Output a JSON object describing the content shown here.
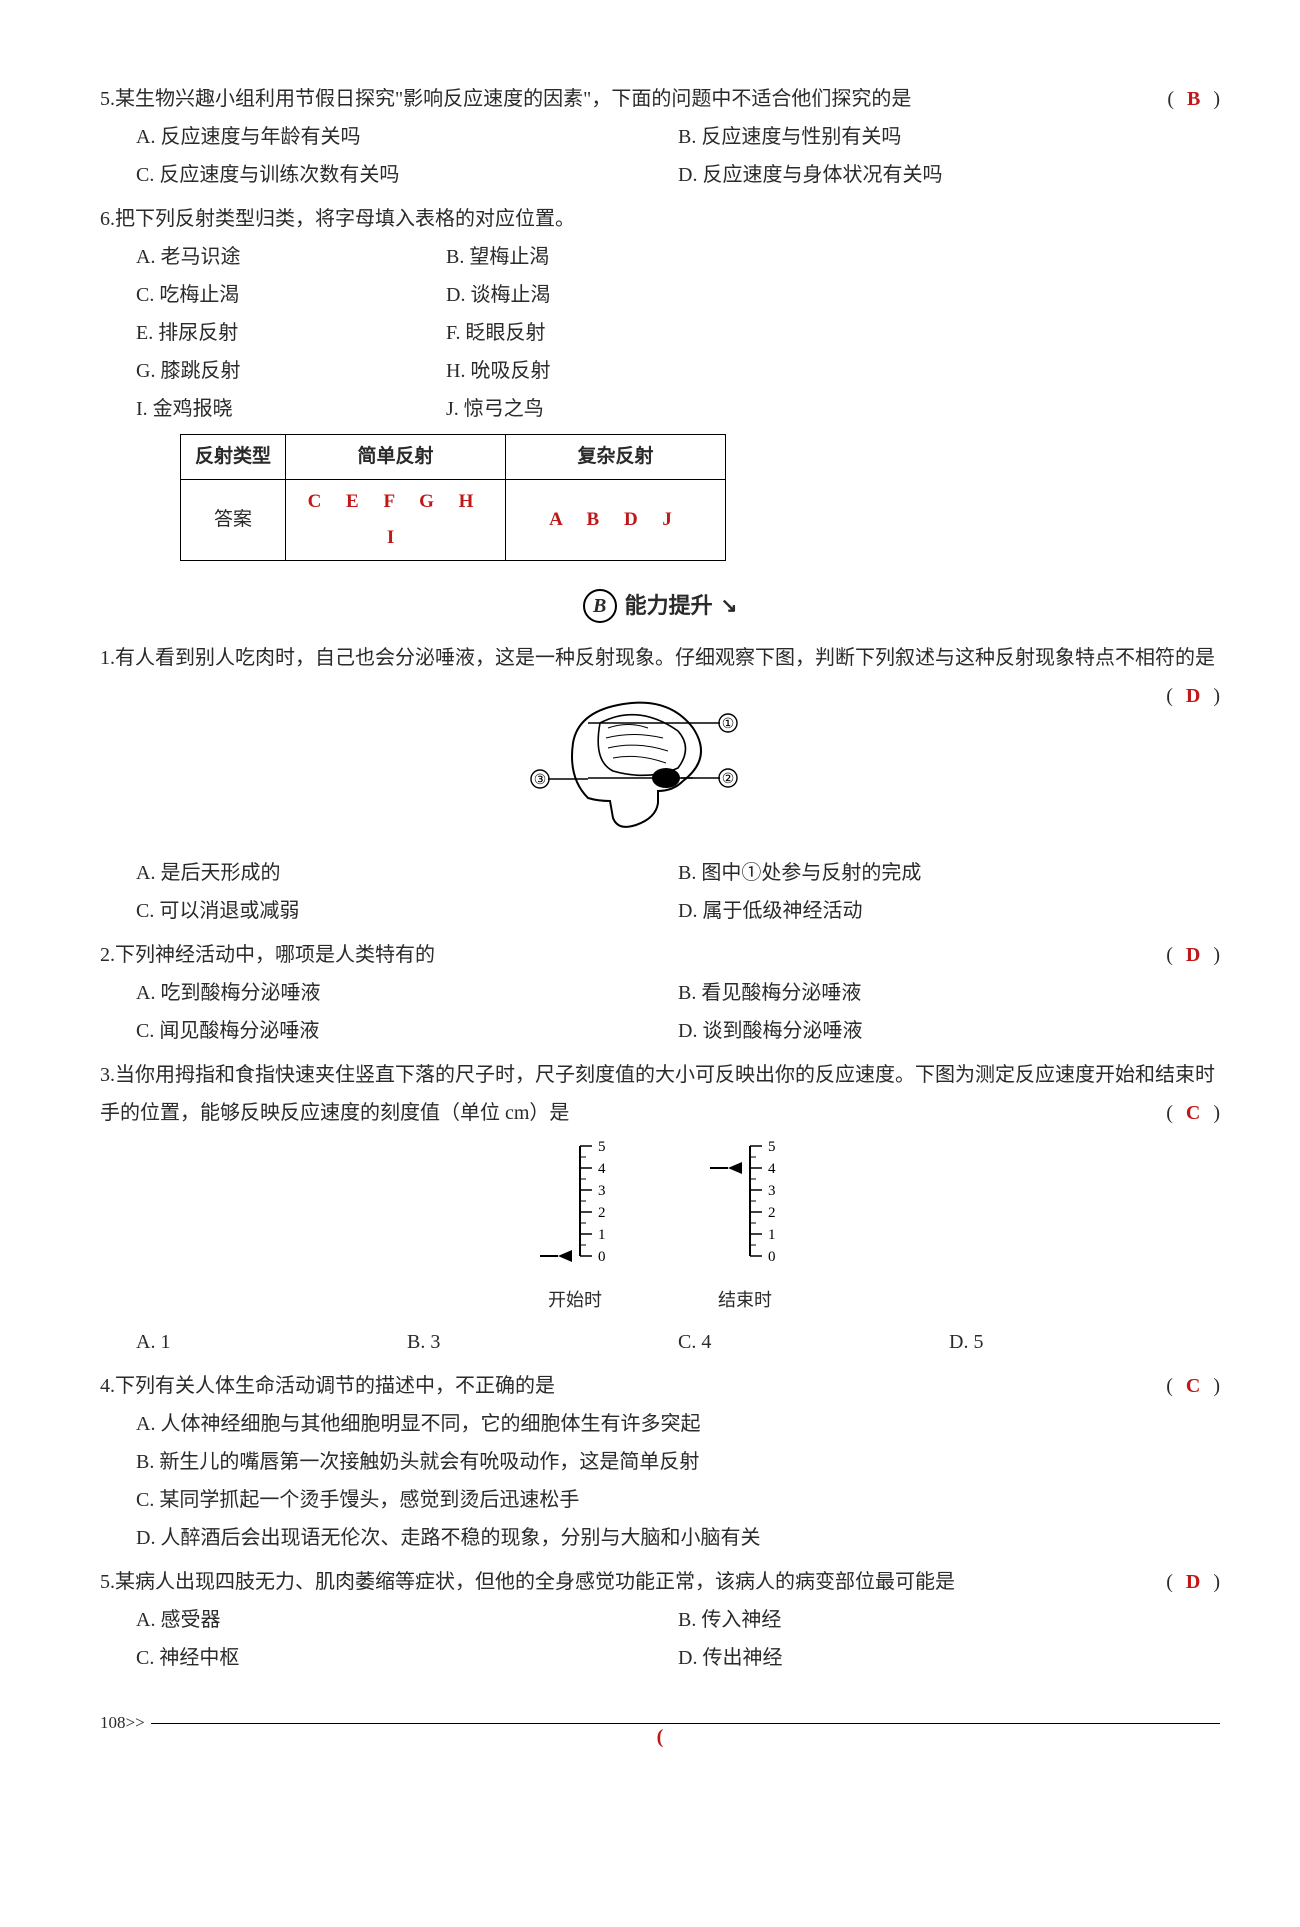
{
  "q5": {
    "num": "5.",
    "text": "某生物兴趣小组利用节假日探究\"影响反应速度的因素\"，下面的问题中不适合他们探究的是",
    "bracket_l": "(",
    "bracket_r": ")",
    "answer": "B",
    "opts": {
      "A": "A. 反应速度与年龄有关吗",
      "B": "B. 反应速度与性别有关吗",
      "C": "C. 反应速度与训练次数有关吗",
      "D": "D. 反应速度与身体状况有关吗"
    }
  },
  "q6": {
    "num": "6.",
    "text": "把下列反射类型归类，将字母填入表格的对应位置。",
    "opts": {
      "A": "A. 老马识途",
      "B": "B. 望梅止渴",
      "C": "C. 吃梅止渴",
      "D": "D. 谈梅止渴",
      "E": "E. 排尿反射",
      "F": "F. 眨眼反射",
      "G": "G. 膝跳反射",
      "H": "H. 吮吸反射",
      "I": "I. 金鸡报晓",
      "J": "J. 惊弓之鸟"
    },
    "table": {
      "h1": "反射类型",
      "h2": "简单反射",
      "h3": "复杂反射",
      "r1": "答案",
      "ans1": "C E F G H I",
      "ans2": "A B D J"
    }
  },
  "section": {
    "badge": "B",
    "title": "能力提升",
    "arrow": "↘"
  },
  "b1": {
    "num": "1.",
    "text": "有人看到别人吃肉时，自己也会分泌唾液，这是一种反射现象。仔细观察下图，判断下列叙述与这种反射现象特点不相符的是",
    "bracket_l": "(",
    "bracket_r": ")",
    "answer": "D",
    "fig": {
      "labels": [
        "①",
        "②",
        "③"
      ]
    },
    "opts": {
      "A": "A. 是后天形成的",
      "B": "B. 图中①处参与反射的完成",
      "C": "C. 可以消退或减弱",
      "D": "D. 属于低级神经活动"
    }
  },
  "b2": {
    "num": "2.",
    "text": "下列神经活动中，哪项是人类特有的",
    "bracket_l": "(",
    "bracket_r": ")",
    "answer": "D",
    "opts": {
      "A": "A. 吃到酸梅分泌唾液",
      "B": "B. 看见酸梅分泌唾液",
      "C": "C. 闻见酸梅分泌唾液",
      "D": "D. 谈到酸梅分泌唾液"
    }
  },
  "b3": {
    "num": "3.",
    "text": "当你用拇指和食指快速夹住竖直下落的尺子时，尺子刻度值的大小可反映出你的反应速度。下图为测定反应速度开始和结束时手的位置，能够反映反应速度的刻度值（单位 cm）是",
    "bracket_l": "(",
    "bracket_r": ")",
    "answer": "C",
    "ruler": {
      "ticks": [
        "5",
        "4",
        "3",
        "2",
        "1",
        "0"
      ],
      "left_label": "开始时",
      "right_label": "结束时",
      "left_pointer": 0,
      "right_pointer": 4
    },
    "opts": {
      "A": "A. 1",
      "B": "B. 3",
      "C": "C. 4",
      "D": "D. 5"
    }
  },
  "b4": {
    "num": "4.",
    "text": "下列有关人体生命活动调节的描述中，不正确的是",
    "bracket_l": "(",
    "bracket_r": ")",
    "answer": "C",
    "opts": {
      "A": "A. 人体神经细胞与其他细胞明显不同，它的细胞体生有许多突起",
      "B": "B. 新生儿的嘴唇第一次接触奶头就会有吮吸动作，这是简单反射",
      "C": "C. 某同学抓起一个烫手馒头，感觉到烫后迅速松手",
      "D": "D. 人醉酒后会出现语无伦次、走路不稳的现象，分别与大脑和小脑有关"
    }
  },
  "b5": {
    "num": "5.",
    "text": "某病人出现四肢无力、肌肉萎缩等症状，但他的全身感觉功能正常，该病人的病变部位最可能是",
    "bracket_l": "(",
    "bracket_r": ")",
    "answer": "D",
    "opts": {
      "A": "A. 感受器",
      "B": "B. 传入神经",
      "C": "C. 神经中枢",
      "D": "D. 传出神经"
    }
  },
  "page": {
    "num": "108",
    "sep": ">>",
    "mark": "("
  }
}
